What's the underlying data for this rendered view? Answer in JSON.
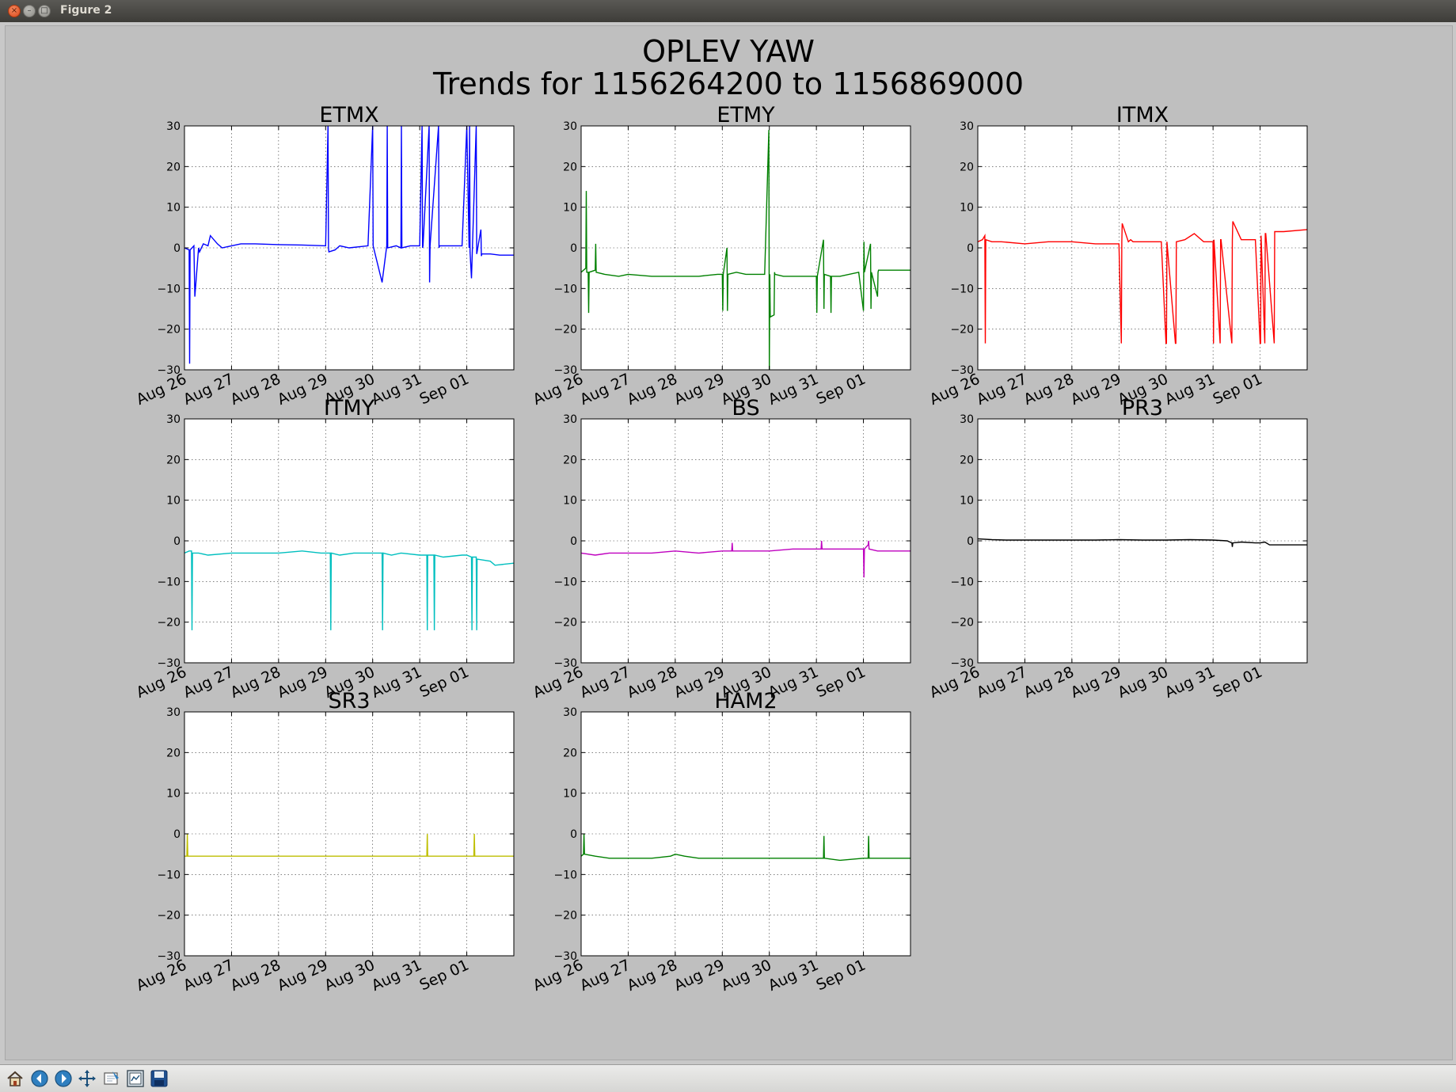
{
  "window": {
    "title": "Figure 2",
    "close_glyph": "×",
    "min_glyph": "–",
    "max_glyph": "□"
  },
  "figure": {
    "title_line1": "OPLEV YAW",
    "title_line2": "Trends for 1156264200 to 1156869000"
  },
  "toolbar": {
    "buttons": [
      {
        "name": "home-icon",
        "tooltip": "Reset original view"
      },
      {
        "name": "back-icon",
        "tooltip": "Back to previous view"
      },
      {
        "name": "forward-icon",
        "tooltip": "Forward to next view"
      },
      {
        "name": "pan-icon",
        "tooltip": "Pan axes"
      },
      {
        "name": "zoom-icon",
        "tooltip": "Zoom to rectangle"
      },
      {
        "name": "subplots-icon",
        "tooltip": "Configure subplots"
      },
      {
        "name": "save-icon",
        "tooltip": "Save the figure"
      }
    ]
  },
  "chart_data": [
    {
      "type": "line",
      "title": "ETMX",
      "color": "#0000ff",
      "xlabel": "",
      "ylabel": "",
      "ylim": [
        -30,
        30
      ],
      "xlim": [
        0,
        7
      ],
      "yticks": [
        30,
        20,
        10,
        0,
        -10,
        -20,
        -30
      ],
      "xticks": [
        "Aug 26",
        "Aug 27",
        "Aug 28",
        "Aug 29",
        "Aug 30",
        "Aug 31",
        "Sep 01"
      ],
      "grid": true,
      "x": [
        0.0,
        0.1,
        0.11,
        0.12,
        0.2,
        0.22,
        0.3,
        0.32,
        0.4,
        0.5,
        0.55,
        0.7,
        0.8,
        1.0,
        1.2,
        1.5,
        2.0,
        2.5,
        3.0,
        3.05,
        3.06,
        3.07,
        3.2,
        3.3,
        3.5,
        3.9,
        4.0,
        4.01,
        4.02,
        4.2,
        4.3,
        4.31,
        4.32,
        4.5,
        4.6,
        4.61,
        4.62,
        4.8,
        5.0,
        5.05,
        5.06,
        5.07,
        5.2,
        5.21,
        5.22,
        5.4,
        5.41,
        5.42,
        5.6,
        5.9,
        6.0,
        6.05,
        6.06,
        6.07,
        6.1,
        6.2,
        6.21,
        6.22,
        6.3,
        6.31,
        6.32,
        6.5,
        6.7,
        7.0
      ],
      "y": [
        0.0,
        -0.5,
        -28.5,
        -0.5,
        0.5,
        -12.0,
        0.0,
        -1.0,
        1.0,
        0.5,
        3.0,
        1.0,
        0.0,
        0.5,
        1.0,
        1.0,
        0.8,
        0.7,
        0.5,
        30.0,
        0.0,
        -1.0,
        -0.5,
        0.5,
        0.0,
        0.5,
        30.0,
        0.5,
        0.0,
        -8.5,
        0.5,
        30.0,
        0.0,
        0.5,
        0.0,
        30.0,
        0.0,
        0.5,
        0.5,
        30.0,
        0.0,
        0.5,
        30.0,
        -8.5,
        0.5,
        30.0,
        0.0,
        0.5,
        0.5,
        0.5,
        30.0,
        0.0,
        30.0,
        -1.0,
        -7.5,
        30.0,
        -1.5,
        -1.0,
        4.5,
        -2.0,
        -1.5,
        -1.5,
        -1.8,
        -1.8
      ]
    },
    {
      "type": "line",
      "title": "ETMY",
      "color": "#008000",
      "xlabel": "",
      "ylabel": "",
      "ylim": [
        -30,
        30
      ],
      "xlim": [
        0,
        7
      ],
      "yticks": [
        30,
        20,
        10,
        0,
        -10,
        -20,
        -30
      ],
      "xticks": [
        "Aug 26",
        "Aug 27",
        "Aug 28",
        "Aug 29",
        "Aug 30",
        "Aug 31",
        "Sep 01"
      ],
      "grid": true,
      "x": [
        0.0,
        0.1,
        0.11,
        0.12,
        0.15,
        0.16,
        0.17,
        0.3,
        0.31,
        0.32,
        0.5,
        0.8,
        1.0,
        1.5,
        2.0,
        2.5,
        2.9,
        3.0,
        3.01,
        3.02,
        3.1,
        3.11,
        3.12,
        3.3,
        3.5,
        3.9,
        3.99,
        4.0,
        4.01,
        4.02,
        4.1,
        4.11,
        4.12,
        4.3,
        4.5,
        5.0,
        5.01,
        5.02,
        5.15,
        5.16,
        5.17,
        5.3,
        5.31,
        5.32,
        5.5,
        5.9,
        6.0,
        6.01,
        6.02,
        6.15,
        6.16,
        6.17,
        6.3,
        6.31,
        6.32,
        6.6,
        7.0
      ],
      "y": [
        -6.0,
        -5.0,
        14.0,
        -6.0,
        -6.0,
        -16.0,
        -6.0,
        -5.5,
        1.0,
        -6.0,
        -6.5,
        -7.0,
        -6.5,
        -7.0,
        -7.0,
        -7.0,
        -6.5,
        -6.5,
        -15.5,
        -6.5,
        0.0,
        -15.5,
        -6.5,
        -6.0,
        -6.5,
        -6.5,
        29.0,
        -30.0,
        -6.5,
        -17.0,
        -16.5,
        -6.0,
        -6.5,
        -7.0,
        -7.0,
        -7.0,
        -16.0,
        -7.0,
        2.0,
        -15.0,
        -6.5,
        -7.0,
        -16.0,
        -7.0,
        -7.0,
        -6.0,
        -15.5,
        1.5,
        -6.0,
        1.0,
        -15.0,
        -6.0,
        -12.0,
        -6.0,
        -5.5,
        -5.5,
        -5.5
      ]
    },
    {
      "type": "line",
      "title": "ITMX",
      "color": "#ff0000",
      "xlabel": "",
      "ylabel": "",
      "ylim": [
        -30,
        30
      ],
      "xlim": [
        0,
        7
      ],
      "yticks": [
        30,
        20,
        10,
        0,
        -10,
        -20,
        -30
      ],
      "xticks": [
        "Aug 26",
        "Aug 27",
        "Aug 28",
        "Aug 29",
        "Aug 30",
        "Aug 31",
        "Sep 01"
      ],
      "grid": true,
      "x": [
        0.0,
        0.1,
        0.15,
        0.16,
        0.17,
        0.3,
        0.5,
        1.0,
        1.5,
        2.0,
        2.5,
        3.0,
        3.05,
        3.06,
        3.07,
        3.2,
        3.25,
        3.3,
        3.6,
        3.9,
        4.0,
        4.01,
        4.02,
        4.2,
        4.21,
        4.22,
        4.4,
        4.6,
        4.8,
        5.0,
        5.01,
        5.02,
        5.15,
        5.16,
        5.17,
        5.4,
        5.41,
        5.42,
        5.6,
        5.9,
        6.0,
        6.01,
        6.02,
        6.1,
        6.11,
        6.12,
        6.3,
        6.31,
        6.32,
        6.5,
        7.0
      ],
      "y": [
        1.5,
        2.0,
        3.0,
        -23.5,
        2.0,
        1.5,
        1.5,
        1.0,
        1.5,
        1.5,
        1.0,
        1.0,
        -23.5,
        1.5,
        6.0,
        1.5,
        2.0,
        1.5,
        1.5,
        1.5,
        -23.5,
        -23.5,
        1.5,
        -23.5,
        -23.5,
        1.5,
        2.0,
        3.5,
        1.5,
        1.5,
        -23.5,
        2.0,
        -23.5,
        2.0,
        2.0,
        -23.5,
        2.0,
        6.5,
        2.0,
        2.0,
        -23.5,
        -23.5,
        3.0,
        -23.5,
        3.5,
        3.5,
        -23.5,
        4.0,
        4.0,
        4.0,
        4.5
      ]
    },
    {
      "type": "line",
      "title": "ITMY",
      "color": "#00bfbf",
      "xlabel": "",
      "ylabel": "",
      "ylim": [
        -30,
        30
      ],
      "xlim": [
        0,
        7
      ],
      "yticks": [
        30,
        20,
        10,
        0,
        -10,
        -20,
        -30
      ],
      "xticks": [
        "Aug 26",
        "Aug 27",
        "Aug 28",
        "Aug 29",
        "Aug 30",
        "Aug 31",
        "Sep 01"
      ],
      "grid": true,
      "x": [
        0.0,
        0.1,
        0.15,
        0.16,
        0.17,
        0.3,
        0.5,
        1.0,
        1.5,
        2.0,
        2.5,
        2.9,
        3.1,
        3.11,
        3.12,
        3.3,
        3.6,
        4.0,
        4.2,
        4.21,
        4.22,
        4.4,
        4.6,
        5.0,
        5.15,
        5.16,
        5.17,
        5.3,
        5.31,
        5.32,
        5.5,
        5.9,
        6.0,
        6.1,
        6.11,
        6.12,
        6.2,
        6.21,
        6.22,
        6.5,
        6.6,
        7.0
      ],
      "y": [
        -3.0,
        -2.5,
        -2.5,
        -22.0,
        -3.0,
        -3.0,
        -3.5,
        -3.0,
        -3.0,
        -3.0,
        -2.5,
        -3.0,
        -3.0,
        -22.0,
        -3.0,
        -3.5,
        -3.0,
        -3.0,
        -3.0,
        -22.0,
        -3.0,
        -3.5,
        -3.0,
        -3.5,
        -3.5,
        -22.0,
        -3.5,
        -3.5,
        -22.0,
        -3.5,
        -4.0,
        -3.5,
        -3.5,
        -4.0,
        -22.0,
        -4.0,
        -4.0,
        -22.0,
        -4.5,
        -5.0,
        -6.0,
        -5.5
      ]
    },
    {
      "type": "line",
      "title": "BS",
      "color": "#bf00bf",
      "xlabel": "",
      "ylabel": "",
      "ylim": [
        -30,
        30
      ],
      "xlim": [
        0,
        7
      ],
      "yticks": [
        30,
        20,
        10,
        0,
        -10,
        -20,
        -30
      ],
      "xticks": [
        "Aug 26",
        "Aug 27",
        "Aug 28",
        "Aug 29",
        "Aug 30",
        "Aug 31",
        "Sep 01"
      ],
      "grid": true,
      "x": [
        0.0,
        0.3,
        0.6,
        1.0,
        1.5,
        2.0,
        2.5,
        3.0,
        3.2,
        3.21,
        3.22,
        3.5,
        4.0,
        4.5,
        5.0,
        5.1,
        5.11,
        5.12,
        5.5,
        5.9,
        6.0,
        6.01,
        6.02,
        6.1,
        6.11,
        6.12,
        6.3,
        6.6,
        7.0
      ],
      "y": [
        -3.0,
        -3.5,
        -3.0,
        -3.0,
        -3.0,
        -2.5,
        -3.0,
        -2.5,
        -2.5,
        -0.5,
        -2.5,
        -2.5,
        -2.5,
        -2.0,
        -2.0,
        -2.0,
        0.0,
        -2.0,
        -2.0,
        -2.0,
        -2.0,
        -9.0,
        -2.0,
        -1.0,
        0.0,
        -2.0,
        -2.5,
        -2.5,
        -2.5
      ]
    },
    {
      "type": "line",
      "title": "PR3",
      "color": "#000000",
      "xlabel": "",
      "ylabel": "",
      "ylim": [
        -30,
        30
      ],
      "xlim": [
        0,
        7
      ],
      "yticks": [
        30,
        20,
        10,
        0,
        -10,
        -20,
        -30
      ],
      "xticks": [
        "Aug 26",
        "Aug 27",
        "Aug 28",
        "Aug 29",
        "Aug 30",
        "Aug 31",
        "Sep 01"
      ],
      "grid": true,
      "x": [
        0.0,
        0.3,
        0.6,
        1.0,
        1.5,
        2.0,
        2.5,
        3.0,
        3.5,
        4.0,
        4.5,
        5.0,
        5.3,
        5.4,
        5.41,
        5.42,
        5.6,
        5.9,
        6.0,
        6.1,
        6.2,
        6.3,
        6.5,
        7.0
      ],
      "y": [
        0.5,
        0.3,
        0.2,
        0.2,
        0.2,
        0.2,
        0.2,
        0.3,
        0.2,
        0.2,
        0.3,
        0.2,
        0.0,
        -0.5,
        -1.5,
        -0.5,
        -0.3,
        -0.5,
        -0.5,
        -0.3,
        -1.0,
        -1.0,
        -1.0,
        -1.0
      ]
    },
    {
      "type": "line",
      "title": "SR3",
      "color": "#bfbf00",
      "xlabel": "",
      "ylabel": "",
      "ylim": [
        -30,
        30
      ],
      "xlim": [
        0,
        7
      ],
      "yticks": [
        30,
        20,
        10,
        0,
        -10,
        -20,
        -30
      ],
      "xticks": [
        "Aug 26",
        "Aug 27",
        "Aug 28",
        "Aug 29",
        "Aug 30",
        "Aug 31",
        "Sep 01"
      ],
      "grid": true,
      "x": [
        0.0,
        0.05,
        0.06,
        0.07,
        0.5,
        1.0,
        1.5,
        2.0,
        2.5,
        3.0,
        3.5,
        4.0,
        4.5,
        5.0,
        5.15,
        5.16,
        5.17,
        5.5,
        6.0,
        6.15,
        6.16,
        6.17,
        6.5,
        7.0
      ],
      "y": [
        -5.5,
        -5.5,
        0.0,
        -5.5,
        -5.5,
        -5.5,
        -5.5,
        -5.5,
        -5.5,
        -5.5,
        -5.5,
        -5.5,
        -5.5,
        -5.5,
        -5.5,
        0.0,
        -5.5,
        -5.5,
        -5.5,
        -5.5,
        0.0,
        -5.5,
        -5.5,
        -5.5
      ]
    },
    {
      "type": "line",
      "title": "HAM2",
      "color": "#008000",
      "xlabel": "",
      "ylabel": "",
      "ylim": [
        -30,
        30
      ],
      "xlim": [
        0,
        7
      ],
      "yticks": [
        30,
        20,
        10,
        0,
        -10,
        -20,
        -30
      ],
      "xticks": [
        "Aug 26",
        "Aug 27",
        "Aug 28",
        "Aug 29",
        "Aug 30",
        "Aug 31",
        "Sep 01"
      ],
      "grid": true,
      "x": [
        0.0,
        0.05,
        0.06,
        0.07,
        0.3,
        0.6,
        1.0,
        1.5,
        1.9,
        2.0,
        2.2,
        2.5,
        3.0,
        3.5,
        4.0,
        4.5,
        5.0,
        5.15,
        5.16,
        5.17,
        5.5,
        6.0,
        6.1,
        6.11,
        6.12,
        6.5,
        7.0
      ],
      "y": [
        -5.5,
        -5.0,
        0.0,
        -5.0,
        -5.5,
        -6.0,
        -6.0,
        -6.0,
        -5.5,
        -5.0,
        -5.5,
        -6.0,
        -6.0,
        -6.0,
        -6.0,
        -6.0,
        -6.0,
        -6.0,
        -0.5,
        -6.0,
        -6.5,
        -6.0,
        -6.0,
        -0.5,
        -6.0,
        -6.0,
        -6.0
      ]
    }
  ]
}
